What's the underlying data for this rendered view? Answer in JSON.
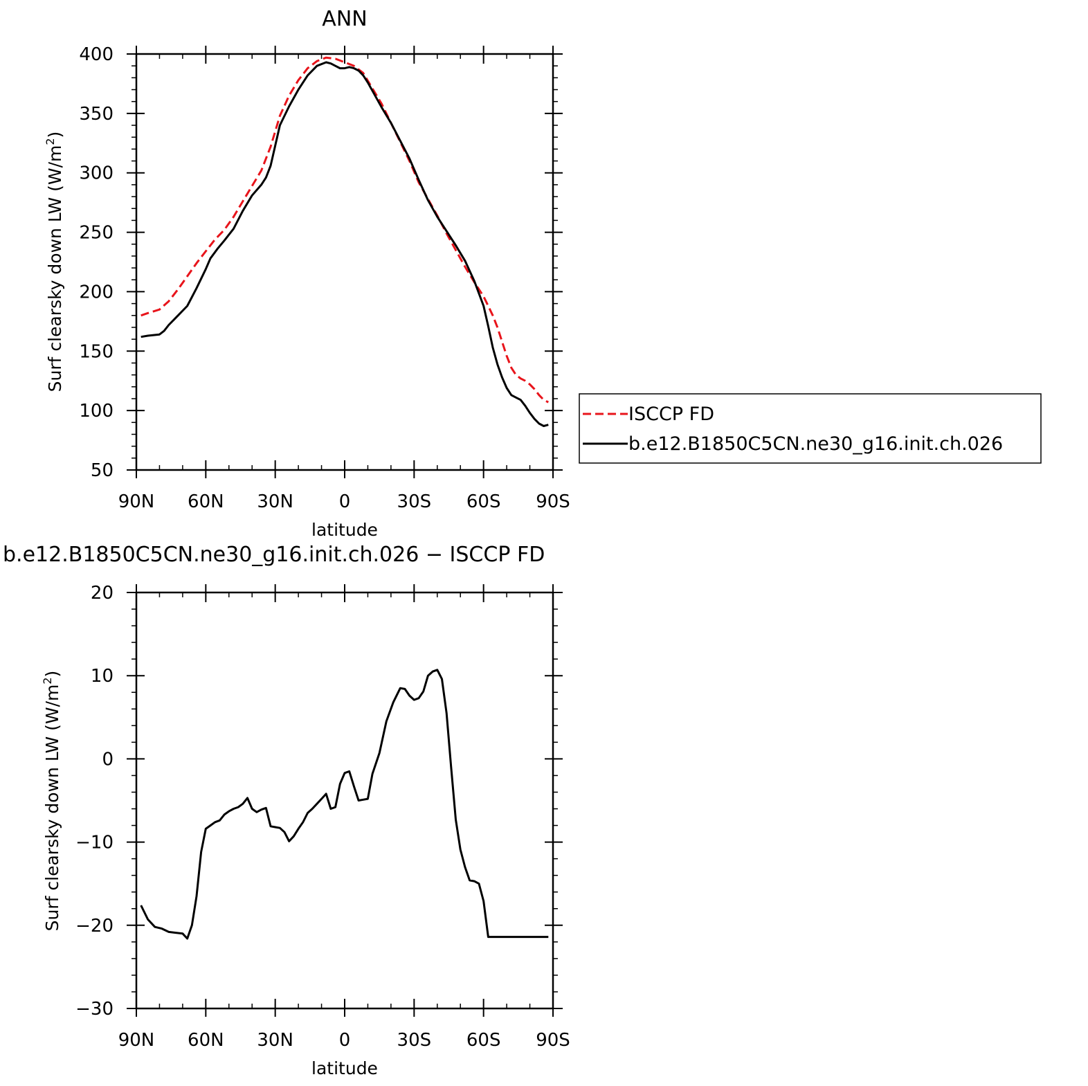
{
  "chart_data": [
    {
      "type": "line",
      "title": "ANN",
      "xlabel": "latitude",
      "ylabel_main": "Surf clearsky down LW (W/m",
      "ylabel_sup": "2",
      "ylabel_close": ")",
      "xlim": [
        90,
        -90
      ],
      "ylim": [
        50,
        400
      ],
      "x_ticks": [
        90,
        60,
        30,
        0,
        -30,
        -60,
        -90
      ],
      "x_tick_labels": [
        "90N",
        "60N",
        "30N",
        "0",
        "30S",
        "60S",
        "90S"
      ],
      "y_ticks": [
        50,
        100,
        150,
        200,
        250,
        300,
        350,
        400
      ],
      "y_tick_labels": [
        "50",
        "100",
        "150",
        "200",
        "250",
        "300",
        "350",
        "400"
      ],
      "grid": false,
      "legend": "right",
      "series": [
        {
          "name": "ISCCP FD",
          "color": "#e8141b",
          "style": "dashed",
          "x": [
            88,
            85,
            80,
            76,
            72,
            68,
            64,
            60,
            56,
            52,
            48,
            44,
            40,
            36,
            32,
            28,
            24,
            20,
            16,
            12,
            8,
            4,
            0,
            -4,
            -8,
            -12,
            -16,
            -20,
            -24,
            -28,
            -32,
            -36,
            -40,
            -44,
            -48,
            -52,
            -56,
            -60,
            -62,
            -64,
            -66,
            -68,
            -70,
            -72,
            -74,
            -76,
            -78,
            -80,
            -82,
            -84,
            -86,
            -88
          ],
          "y": [
            180,
            182,
            185,
            192,
            202,
            213,
            224,
            234,
            244,
            252,
            263,
            276,
            289,
            302,
            322,
            348,
            365,
            378,
            388,
            394,
            397,
            396,
            393,
            390,
            384,
            371,
            358,
            342,
            326,
            310,
            292,
            278,
            264,
            249,
            235,
            221,
            208,
            196,
            188,
            180,
            170,
            158,
            146,
            136,
            130,
            127,
            125,
            122,
            118,
            113,
            109,
            107
          ]
        },
        {
          "name": "b.e12.B1850C5CN.ne30_g16.init.ch.026",
          "color": "#000000",
          "style": "solid",
          "x": [
            88,
            85,
            80,
            78,
            76,
            72,
            68,
            64,
            60,
            58,
            55,
            52,
            48,
            44,
            40,
            36,
            34,
            32,
            28,
            24,
            20,
            16,
            12,
            8,
            6,
            4,
            2,
            0,
            -2,
            -4,
            -6,
            -8,
            -10,
            -12,
            -16,
            -20,
            -24,
            -28,
            -32,
            -36,
            -40,
            -44,
            -48,
            -52,
            -56,
            -60,
            -62,
            -64,
            -66,
            -68,
            -70,
            -72,
            -74,
            -76,
            -78,
            -80,
            -82,
            -84,
            -86,
            -88
          ],
          "y": [
            162,
            163,
            164,
            167,
            172,
            180,
            188,
            203,
            219,
            228,
            236,
            243,
            253,
            268,
            281,
            290,
            296,
            306,
            340,
            356,
            370,
            382,
            390,
            393,
            392,
            390,
            388,
            388,
            389,
            388,
            386,
            382,
            376,
            369,
            355,
            342,
            327,
            312,
            294,
            277,
            263,
            251,
            239,
            226,
            209,
            188,
            171,
            153,
            139,
            128,
            119,
            113,
            111,
            109,
            104,
            98,
            93,
            89,
            87,
            88
          ]
        }
      ]
    },
    {
      "type": "line",
      "title": "b.e12.B1850C5CN.ne30_g16.init.ch.026 − ISCCP FD",
      "xlabel": "latitude",
      "ylabel_main": "Surf clearsky down LW (W/m",
      "ylabel_sup": "2",
      "ylabel_close": ")",
      "xlim": [
        90,
        -90
      ],
      "ylim": [
        -30,
        20
      ],
      "x_ticks": [
        90,
        60,
        30,
        0,
        -30,
        -60,
        -90
      ],
      "x_tick_labels": [
        "90N",
        "60N",
        "30N",
        "0",
        "30S",
        "60S",
        "90S"
      ],
      "y_ticks": [
        -30,
        -20,
        -10,
        0,
        10,
        20
      ],
      "y_tick_labels": [
        "−30",
        "−20",
        "−10",
        "0",
        "10",
        "20"
      ],
      "grid": false,
      "series": [
        {
          "color": "#000000",
          "style": "solid",
          "x": [
            88,
            85,
            82,
            79,
            76,
            73,
            70,
            68,
            66,
            64,
            62,
            60,
            58,
            56,
            54,
            52,
            50,
            48,
            46,
            44,
            42,
            40,
            38,
            36,
            34,
            32,
            30,
            28,
            26,
            24,
            22,
            20,
            18,
            16,
            14,
            12,
            10,
            8,
            6,
            4,
            2,
            0,
            -2,
            -4,
            -6,
            -8,
            -10,
            -12,
            -15,
            -18,
            -21,
            -24,
            -26,
            -28,
            -30,
            -32,
            -34,
            -36,
            -38,
            -40,
            -42,
            -44,
            -46,
            -48,
            -50,
            -52,
            -54,
            -56,
            -58,
            -60,
            -62,
            -64,
            -66,
            -68,
            -70,
            -72,
            -74,
            -76,
            -78,
            -80,
            -82,
            -84,
            -86,
            -88
          ],
          "y": [
            -17.6,
            -19.3,
            -20.2,
            -20.4,
            -20.8,
            -20.9,
            -21.0,
            -21.6,
            -20.0,
            -16.5,
            -11.2,
            -8.4,
            -8.0,
            -7.6,
            -7.4,
            -6.7,
            -6.3,
            -6.0,
            -5.8,
            -5.4,
            -4.7,
            -6.0,
            -6.4,
            -6.1,
            -5.9,
            -8.1,
            -8.2,
            -8.3,
            -8.8,
            -9.9,
            -9.3,
            -8.4,
            -7.6,
            -6.5,
            -6.0,
            -5.4,
            -4.8,
            -4.2,
            -6.0,
            -5.8,
            -3.0,
            -1.7,
            -1.5,
            -3.3,
            -5.0,
            -4.9,
            -4.8,
            -1.8,
            0.7,
            4.5,
            6.8,
            8.5,
            8.4,
            7.6,
            7.1,
            7.3,
            8.1,
            10.0,
            10.5,
            10.7,
            9.6,
            5.5,
            -1.0,
            -7.3,
            -10.9,
            -13.0,
            -14.6,
            -14.7,
            -15.0,
            -17.1,
            -21.4,
            -21.4,
            -21.4,
            -21.4,
            -21.4,
            -21.4,
            -21.4,
            -21.4,
            -21.4,
            -21.4,
            -21.4,
            -21.4,
            -21.4,
            -21.4
          ]
        }
      ]
    }
  ]
}
